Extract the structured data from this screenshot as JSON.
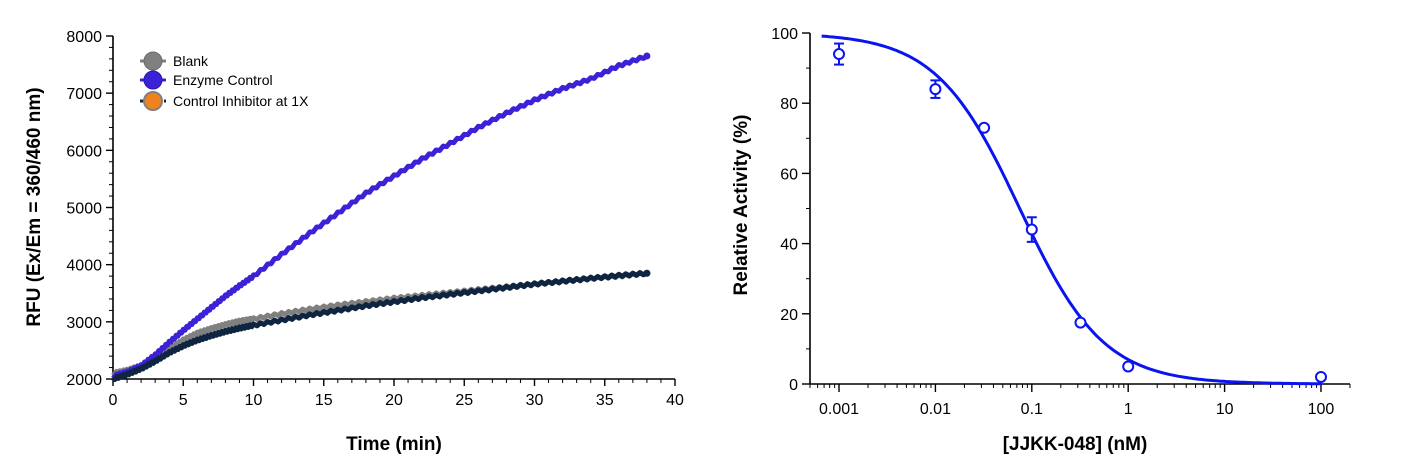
{
  "chart_data": [
    {
      "type": "line",
      "xlabel": "Time (min)",
      "ylabel": "RFU (Ex/Em = 360/460 nm)",
      "xlim": [
        0,
        40
      ],
      "ylim": [
        2000,
        8000
      ],
      "xticks": [
        0,
        5,
        10,
        15,
        20,
        25,
        30,
        35,
        40
      ],
      "yticks": [
        2000,
        3000,
        4000,
        5000,
        6000,
        7000,
        8000
      ],
      "legend_position": "top-left",
      "series": [
        {
          "name": "Blank",
          "color": "#808080",
          "marker_color": "#808080",
          "x": [
            0,
            1,
            2,
            3,
            4,
            5,
            6,
            7,
            8,
            9,
            10,
            12,
            14,
            16,
            18,
            20,
            22,
            24,
            26,
            28,
            30,
            32,
            34,
            36,
            38
          ],
          "y": [
            2100,
            2150,
            2230,
            2360,
            2520,
            2680,
            2800,
            2880,
            2950,
            3010,
            3050,
            3140,
            3220,
            3290,
            3350,
            3410,
            3460,
            3510,
            3560,
            3610,
            3660,
            3710,
            3760,
            3800,
            3850
          ]
        },
        {
          "name": "Enzyme Control",
          "color": "#3b22d6",
          "marker_color": "#3b22d6",
          "x": [
            0,
            1,
            2,
            3,
            4,
            5,
            6,
            7,
            8,
            9,
            10,
            12,
            14,
            16,
            18,
            20,
            22,
            24,
            26,
            28,
            30,
            32,
            34,
            36,
            38
          ],
          "y": [
            2050,
            2120,
            2230,
            2420,
            2640,
            2850,
            3050,
            3250,
            3450,
            3630,
            3800,
            4180,
            4550,
            4900,
            5250,
            5550,
            5850,
            6120,
            6400,
            6650,
            6880,
            7080,
            7250,
            7480,
            7650
          ]
        },
        {
          "name": "Control Inhibitor at 1X",
          "color": "#0f2440",
          "marker_color": "#f0821e",
          "x": [
            0,
            1,
            2,
            3,
            4,
            5,
            6,
            7,
            8,
            9,
            10,
            12,
            14,
            16,
            18,
            20,
            22,
            24,
            26,
            28,
            30,
            32,
            34,
            36,
            38
          ],
          "y": [
            2000,
            2080,
            2180,
            2310,
            2460,
            2580,
            2680,
            2760,
            2830,
            2890,
            2940,
            3030,
            3120,
            3200,
            3280,
            3350,
            3420,
            3480,
            3540,
            3600,
            3660,
            3710,
            3760,
            3810,
            3850
          ]
        }
      ]
    },
    {
      "type": "scatter",
      "xlabel": "[JJKK-048] (nM)",
      "ylabel": "Relative Activity (%)",
      "xscale": "log",
      "xlim": [
        0.0005,
        200
      ],
      "ylim": [
        0,
        100
      ],
      "xticks": [
        0.001,
        0.01,
        0.1,
        1,
        10,
        100
      ],
      "xtick_labels": [
        "0.001",
        "0.01",
        "0.1",
        "1",
        "10",
        "100"
      ],
      "yticks": [
        0,
        20,
        40,
        60,
        80,
        100
      ],
      "color": "#0a14ee",
      "points": [
        {
          "x": 0.001,
          "y": 94,
          "err": 3
        },
        {
          "x": 0.01,
          "y": 84,
          "err": 2.5
        },
        {
          "x": 0.032,
          "y": 73,
          "err": 0.5
        },
        {
          "x": 0.1,
          "y": 44,
          "err": 3.5
        },
        {
          "x": 0.32,
          "y": 17.5,
          "err": 0.5
        },
        {
          "x": 1,
          "y": 5,
          "err": 0.5
        },
        {
          "x": 100,
          "y": 2,
          "err": 0.5
        }
      ],
      "fit": {
        "top": 100,
        "bottom": 0,
        "ic50": 0.075,
        "hill": 1.0
      }
    }
  ]
}
